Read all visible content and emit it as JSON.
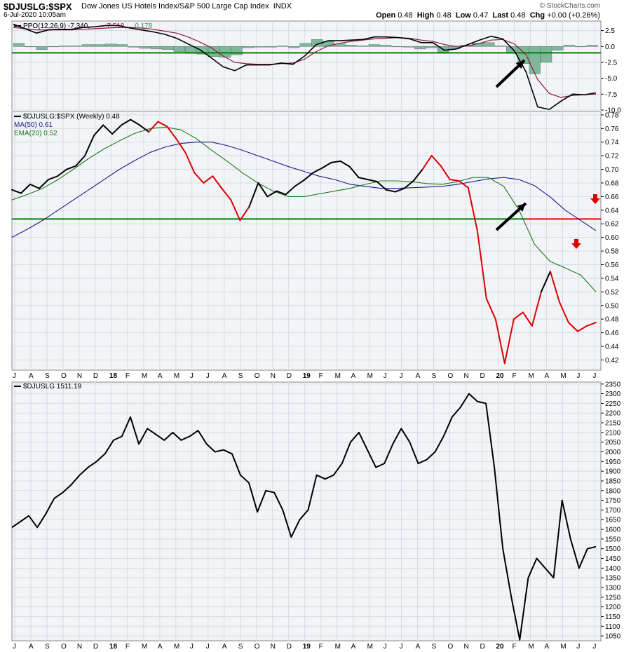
{
  "header": {
    "symbol": "$DJUSLG:$SPX",
    "description": "Dow Jones US Hotels Index/S&P 500 Large Cap Index",
    "exchange": "INDX",
    "date": "6-Jul-2020 10:05am",
    "credit": "© StockCharts.com",
    "open_label": "Open",
    "open": "0.48",
    "high_label": "High",
    "high": "0.48",
    "low_label": "Low",
    "low": "0.47",
    "last_label": "Last",
    "last": "0.48",
    "chg_label": "Chg",
    "chg": "+0.00 (+0.26%)"
  },
  "colors": {
    "price_black": "#000000",
    "price_red": "#dd0000",
    "ma50": "#1a1a8c",
    "ema20": "#1a7a1a",
    "ppo_signal": "#8b1a3a",
    "histogram": "#7fb79a",
    "support_line": "#008000",
    "breakdown_line": "#ee0000",
    "panel_bg": "#f2f4f8",
    "grid": "#d8dbe4"
  },
  "x_axis": {
    "labels": [
      "J",
      "A",
      "S",
      "O",
      "N",
      "D",
      "18",
      "F",
      "M",
      "A",
      "M",
      "J",
      "J",
      "A",
      "S",
      "O",
      "N",
      "D",
      "19",
      "F",
      "M",
      "A",
      "M",
      "J",
      "J",
      "A",
      "S",
      "O",
      "N",
      "D",
      "20",
      "F",
      "M",
      "A",
      "M",
      "J",
      "J"
    ]
  },
  "chart_data": [
    {
      "type": "line",
      "panel": "PPO",
      "legend": {
        "name": "PPO(12,26,9)",
        "v1": "-7.340",
        "v2": "-7.518",
        "v3": "0.178"
      },
      "ylim": [
        -10,
        4
      ],
      "yticks": [
        "2.5",
        "0.0",
        "-2.5",
        "-5.0",
        "-7.5",
        "-10.0"
      ],
      "hline": -1,
      "series": [
        {
          "name": "PPO",
          "values": [
            3.5,
            2.8,
            2.1,
            2.6,
            2.7,
            2.7,
            3.0,
            3.1,
            3.3,
            3.3,
            2.9,
            2.6,
            2.3,
            1.9,
            1.3,
            0.4,
            -0.5,
            -1.8,
            -3.2,
            -3.8,
            -2.9,
            -2.9,
            -2.9,
            -2.6,
            -2.8,
            -1.5,
            0.3,
            0.9,
            0.9,
            1.0,
            1.1,
            1.5,
            1.5,
            1.4,
            1.2,
            0.6,
            0.6,
            -0.6,
            -0.4,
            0.3,
            1.0,
            1.6,
            1.2,
            -0.7,
            -4.0,
            -9.5,
            -9.9,
            -8.6,
            -7.5,
            -7.6,
            -7.3
          ]
        },
        {
          "name": "Signal",
          "values": [
            3.0,
            2.8,
            2.6,
            2.6,
            2.6,
            2.6,
            2.7,
            2.8,
            2.9,
            3.0,
            3.0,
            2.9,
            2.7,
            2.4,
            2.1,
            1.5,
            0.7,
            -0.2,
            -1.5,
            -2.5,
            -2.7,
            -2.8,
            -2.8,
            -2.7,
            -2.6,
            -2.0,
            -0.8,
            0.1,
            0.5,
            0.8,
            1.0,
            1.2,
            1.3,
            1.4,
            1.3,
            1.0,
            0.8,
            0.3,
            0.0,
            0.1,
            0.5,
            1.0,
            1.1,
            0.4,
            -1.3,
            -5.2,
            -7.4,
            -8.0,
            -7.7,
            -7.6,
            -7.5
          ]
        },
        {
          "name": "Histogram",
          "values": [
            0.5,
            0,
            -0.5,
            0,
            0.1,
            0.1,
            0.3,
            0.3,
            0.4,
            0.3,
            -0.1,
            -0.3,
            -0.4,
            -0.5,
            -0.8,
            -1.1,
            -1.2,
            -1.6,
            -1.7,
            -1.3,
            -0.2,
            -0.1,
            -0.1,
            0.1,
            -0.2,
            0.5,
            1.1,
            0.8,
            0.4,
            0.2,
            0.1,
            0.3,
            0.2,
            0,
            -0.1,
            -0.4,
            -0.2,
            -0.9,
            -0.4,
            0.2,
            0.5,
            0.6,
            0.1,
            -1.1,
            -2.7,
            -4.3,
            -2.5,
            -0.6,
            0.2,
            0,
            0.2
          ]
        }
      ]
    },
    {
      "type": "line",
      "panel": "ratio",
      "legend": [
        {
          "name": "$DJUSLG:$SPX (Weekly)",
          "value": "0.48"
        },
        {
          "name": "MA(50)",
          "value": "0.61"
        },
        {
          "name": "EMA(20)",
          "value": "0.52"
        }
      ],
      "ylim": [
        0.405,
        0.785
      ],
      "yticks": [
        "0.78",
        "0.76",
        "0.74",
        "0.72",
        "0.70",
        "0.68",
        "0.66",
        "0.64",
        "0.62",
        "0.60",
        "0.58",
        "0.56",
        "0.54",
        "0.52",
        "0.50",
        "0.48",
        "0.46",
        "0.44",
        "0.42"
      ],
      "hline_support": 0.627,
      "series": [
        {
          "name": "$DJUSLG:$SPX",
          "values": [
            0.67,
            0.665,
            0.678,
            0.672,
            0.685,
            0.69,
            0.7,
            0.705,
            0.72,
            0.75,
            0.765,
            0.752,
            0.765,
            0.773,
            0.765,
            0.755,
            0.77,
            0.763,
            0.745,
            0.725,
            0.695,
            0.68,
            0.69,
            0.672,
            0.655,
            0.625,
            0.645,
            0.68,
            0.66,
            0.668,
            0.663,
            0.675,
            0.684,
            0.695,
            0.702,
            0.71,
            0.712,
            0.704,
            0.688,
            0.685,
            0.682,
            0.67,
            0.667,
            0.672,
            0.683,
            0.7,
            0.72,
            0.705,
            0.685,
            0.683,
            0.673,
            0.61,
            0.51,
            0.48,
            0.415,
            0.48,
            0.49,
            0.47,
            0.52,
            0.55,
            0.505,
            0.475,
            0.462,
            0.47,
            0.475
          ]
        },
        {
          "name": "MA(50)",
          "values": [
            0.6,
            0.612,
            0.625,
            0.64,
            0.655,
            0.67,
            0.685,
            0.7,
            0.713,
            0.725,
            0.733,
            0.738,
            0.74,
            0.74,
            0.735,
            0.728,
            0.72,
            0.712,
            0.704,
            0.697,
            0.69,
            0.685,
            0.678,
            0.675,
            0.672,
            0.672,
            0.673,
            0.674,
            0.675,
            0.678,
            0.682,
            0.686,
            0.688,
            0.685,
            0.676,
            0.66,
            0.64,
            0.625,
            0.61
          ]
        },
        {
          "name": "EMA(20)",
          "values": [
            0.655,
            0.663,
            0.672,
            0.685,
            0.7,
            0.716,
            0.73,
            0.742,
            0.753,
            0.76,
            0.762,
            0.758,
            0.745,
            0.728,
            0.712,
            0.695,
            0.68,
            0.668,
            0.66,
            0.66,
            0.664,
            0.668,
            0.672,
            0.678,
            0.683,
            0.683,
            0.682,
            0.679,
            0.678,
            0.682,
            0.688,
            0.688,
            0.675,
            0.64,
            0.59,
            0.565,
            0.555,
            0.545,
            0.52
          ]
        }
      ]
    },
    {
      "type": "line",
      "panel": "price",
      "legend": {
        "name": "$DJUSLG",
        "value": "1511.19"
      },
      "ylim": [
        1025,
        2360
      ],
      "yticks": [
        "2350",
        "2300",
        "2250",
        "2200",
        "2150",
        "2100",
        "2050",
        "2000",
        "1950",
        "1900",
        "1850",
        "1800",
        "1750",
        "1700",
        "1650",
        "1600",
        "1550",
        "1500",
        "1450",
        "1400",
        "1350",
        "1300",
        "1250",
        "1200",
        "1150",
        "1100",
        "1050"
      ],
      "series": [
        {
          "name": "$DJUSLG",
          "values": [
            1610,
            1640,
            1670,
            1610,
            1680,
            1760,
            1790,
            1830,
            1880,
            1920,
            1950,
            1990,
            2060,
            2080,
            2180,
            2040,
            2120,
            2090,
            2060,
            2100,
            2060,
            2080,
            2110,
            2040,
            2000,
            2010,
            1990,
            1880,
            1840,
            1690,
            1800,
            1790,
            1700,
            1560,
            1650,
            1700,
            1880,
            1860,
            1880,
            1940,
            2050,
            2100,
            2010,
            1920,
            1940,
            2040,
            2120,
            2050,
            1940,
            1960,
            2000,
            2080,
            2180,
            2230,
            2300,
            2260,
            2250,
            1920,
            1500,
            1250,
            1030,
            1350,
            1450,
            1400,
            1350,
            1750,
            1550,
            1400,
            1500,
            1511
          ]
        }
      ]
    }
  ]
}
